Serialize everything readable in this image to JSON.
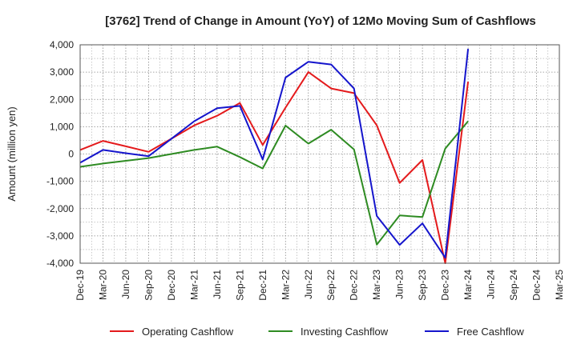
{
  "chart_data": {
    "type": "line",
    "title": "[3762]  Trend of Change in Amount (YoY) of 12Mo Moving Sum of Cashflows",
    "xlabel": "",
    "ylabel": "Amount (million yen)",
    "ylim": [
      -4000,
      4000
    ],
    "yticks": [
      4000,
      3000,
      2000,
      1000,
      0,
      -1000,
      -2000,
      -3000,
      -4000
    ],
    "ytick_labels": [
      "4,000",
      "3,000",
      "2,000",
      "1,000",
      "0",
      "-1,000",
      "-2,000",
      "-3,000",
      "-4,000"
    ],
    "categories": [
      "Dec-19",
      "Mar-20",
      "Jun-20",
      "Sep-20",
      "Dec-20",
      "Mar-21",
      "Jun-21",
      "Sep-21",
      "Dec-21",
      "Mar-22",
      "Jun-22",
      "Sep-22",
      "Dec-22",
      "Mar-23",
      "Jun-23",
      "Sep-23",
      "Dec-23",
      "Mar-24",
      "Jun-24",
      "Sep-24",
      "Dec-24",
      "Mar-25"
    ],
    "grid": true,
    "legend_position": "bottom",
    "series": [
      {
        "name": "Operating Cashflow",
        "color": "#e41a1c",
        "values": [
          150,
          480,
          280,
          80,
          560,
          1050,
          1400,
          1870,
          330,
          1700,
          3000,
          2400,
          2230,
          1050,
          -1060,
          -220,
          -4000,
          2650,
          null,
          null,
          null,
          null
        ]
      },
      {
        "name": "Investing Cashflow",
        "color": "#2e8b22",
        "values": [
          -470,
          -350,
          -250,
          -150,
          0,
          150,
          270,
          -110,
          -530,
          1040,
          380,
          890,
          170,
          -3320,
          -2250,
          -2310,
          200,
          1200,
          null,
          null,
          null,
          null
        ]
      },
      {
        "name": "Free Cashflow",
        "color": "#1515cc",
        "values": [
          -320,
          150,
          30,
          -80,
          560,
          1200,
          1680,
          1760,
          -200,
          2800,
          3380,
          3280,
          2400,
          -2270,
          -3330,
          -2540,
          -3800,
          3850,
          null,
          null,
          null,
          null
        ]
      }
    ]
  }
}
